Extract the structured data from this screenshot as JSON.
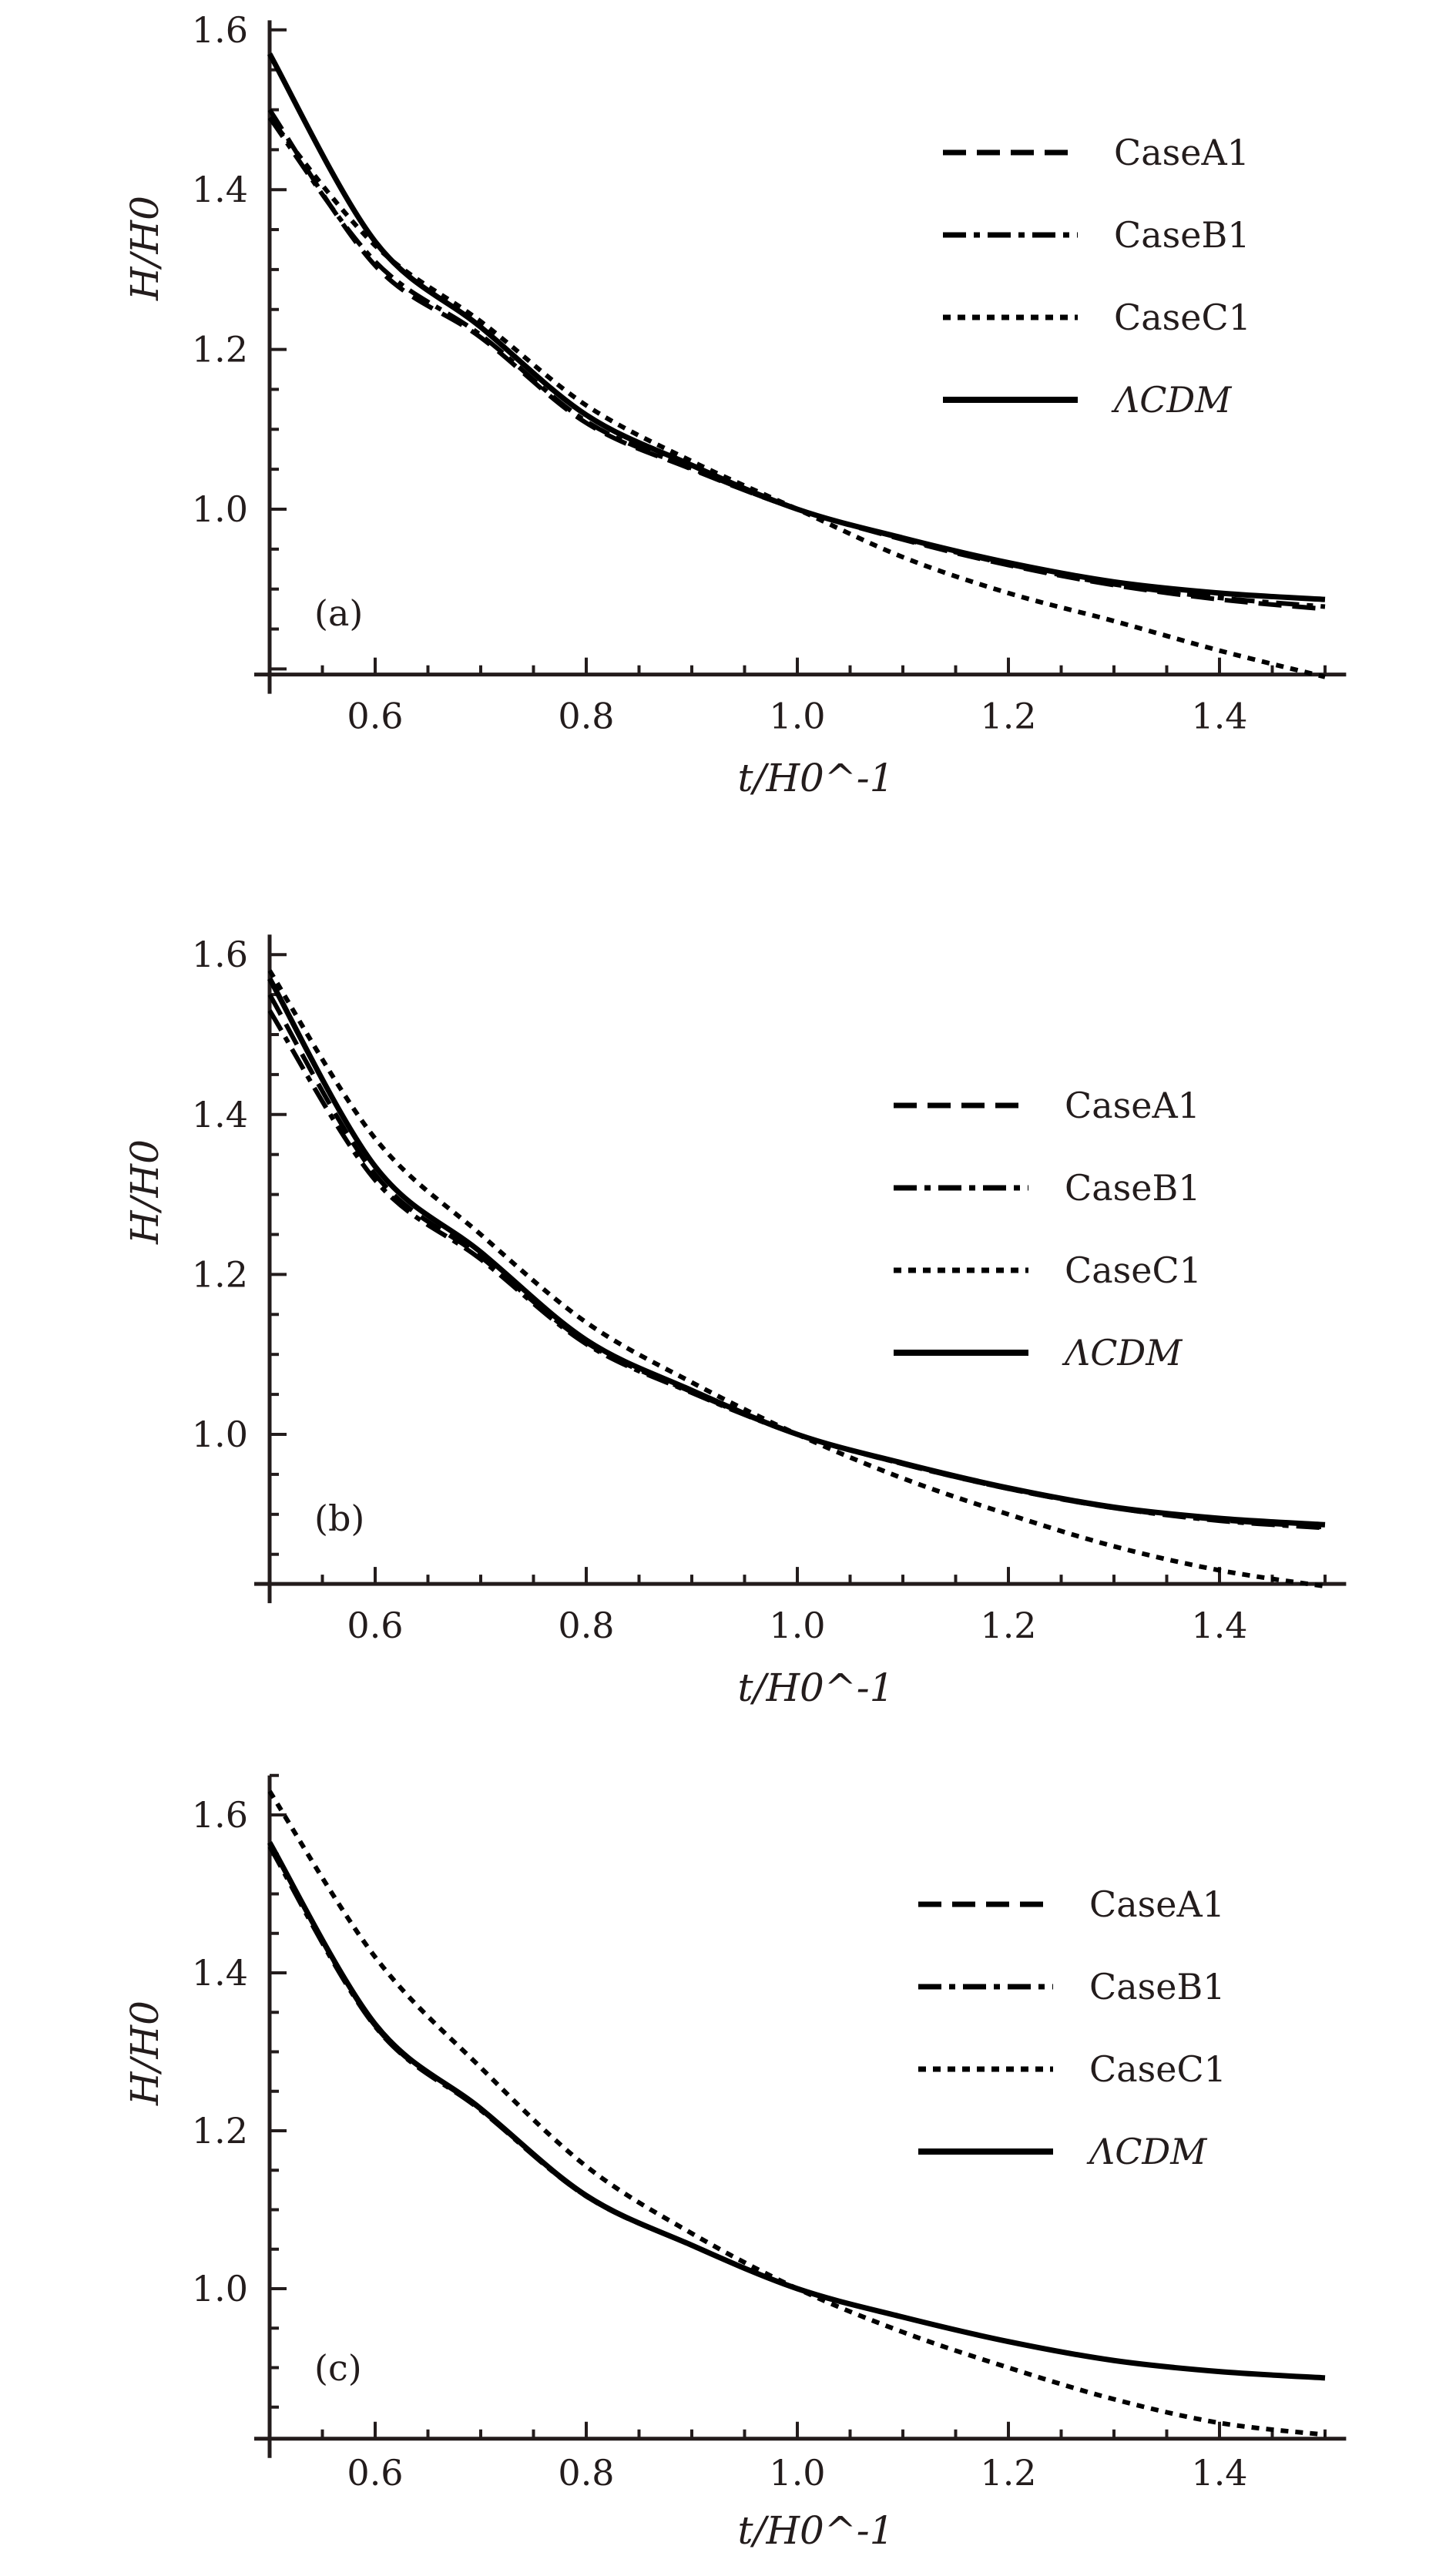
{
  "chart_data": [
    {
      "type": "line",
      "panel_label": "(a)",
      "xlabel": "t/H0^-1",
      "ylabel": "H/H0",
      "xlim": [
        0.5,
        1.52
      ],
      "ylim": [
        0.793,
        1.612
      ],
      "xticks": [
        "0.6",
        "0.8",
        "1.0",
        "1.2",
        "1.4"
      ],
      "yticks": [
        "1.0",
        "1.2",
        "1.4",
        "1.6"
      ],
      "legend_position": "top-right",
      "x": [
        0.5,
        0.6,
        0.7,
        0.8,
        0.9,
        1.0,
        1.1,
        1.2,
        1.3,
        1.4,
        1.5
      ],
      "series": [
        {
          "name": "CaseA1",
          "style": "dashed",
          "values": [
            1.5,
            1.305,
            1.215,
            1.108,
            1.05,
            1.0,
            0.962,
            0.93,
            0.905,
            0.887,
            0.875
          ]
        },
        {
          "name": "CaseB1",
          "style": "dashdot",
          "values": [
            1.49,
            1.31,
            1.218,
            1.11,
            1.051,
            1.0,
            0.963,
            0.931,
            0.906,
            0.889,
            0.878
          ]
        },
        {
          "name": "CaseC1",
          "style": "dotted",
          "values": [
            1.49,
            1.33,
            1.235,
            1.13,
            1.06,
            1.0,
            0.94,
            0.895,
            0.86,
            0.823,
            0.79
          ]
        },
        {
          "name": "ΛCDM",
          "style": "solid",
          "values": [
            1.57,
            1.335,
            1.228,
            1.118,
            1.055,
            1.0,
            0.964,
            0.933,
            0.909,
            0.895,
            0.887
          ]
        }
      ]
    },
    {
      "type": "line",
      "panel_label": "(b)",
      "xlabel": "t/H0^-1",
      "ylabel": "H/H0",
      "xlim": [
        0.5,
        1.52
      ],
      "ylim": [
        0.813,
        1.625
      ],
      "xticks": [
        "0.6",
        "0.8",
        "1.0",
        "1.2",
        "1.4"
      ],
      "yticks": [
        "1.0",
        "1.2",
        "1.4",
        "1.6"
      ],
      "legend_position": "top-right",
      "x": [
        0.5,
        0.6,
        0.7,
        0.8,
        0.9,
        1.0,
        1.1,
        1.2,
        1.3,
        1.4,
        1.5
      ],
      "series": [
        {
          "name": "CaseA1",
          "style": "dashed",
          "values": [
            1.55,
            1.325,
            1.222,
            1.115,
            1.053,
            1.0,
            0.963,
            0.932,
            0.908,
            0.893,
            0.884
          ]
        },
        {
          "name": "CaseB1",
          "style": "dashdot",
          "values": [
            1.53,
            1.318,
            1.219,
            1.113,
            1.052,
            1.0,
            0.963,
            0.932,
            0.908,
            0.892,
            0.883
          ]
        },
        {
          "name": "CaseC1",
          "style": "dotted",
          "values": [
            1.58,
            1.37,
            1.25,
            1.14,
            1.065,
            1.0,
            0.945,
            0.9,
            0.86,
            0.83,
            0.81
          ]
        },
        {
          "name": "ΛCDM",
          "style": "solid",
          "values": [
            1.57,
            1.335,
            1.228,
            1.118,
            1.055,
            1.0,
            0.964,
            0.933,
            0.909,
            0.895,
            0.887
          ]
        }
      ]
    },
    {
      "type": "line",
      "panel_label": "(c)",
      "xlabel": "t/H0^-1",
      "ylabel": "H/H0",
      "xlim": [
        0.5,
        1.52
      ],
      "ylim": [
        0.81,
        1.65
      ],
      "xticks": [
        "0.6",
        "0.8",
        "1.0",
        "1.2",
        "1.4"
      ],
      "yticks": [
        "1.0",
        "1.2",
        "1.4",
        "1.6"
      ],
      "legend_position": "top-right",
      "x": [
        0.5,
        0.6,
        0.7,
        0.8,
        0.9,
        1.0,
        1.1,
        1.2,
        1.3,
        1.4,
        1.5
      ],
      "series": [
        {
          "name": "CaseA1",
          "style": "dashed",
          "values": [
            1.565,
            1.333,
            1.227,
            1.117,
            1.055,
            1.0,
            0.964,
            0.933,
            0.909,
            0.895,
            0.887
          ]
        },
        {
          "name": "CaseB1",
          "style": "dashdot",
          "values": [
            1.56,
            1.332,
            1.226,
            1.117,
            1.055,
            1.0,
            0.964,
            0.933,
            0.909,
            0.895,
            0.887
          ]
        },
        {
          "name": "CaseC1",
          "style": "dotted",
          "values": [
            1.63,
            1.42,
            1.28,
            1.155,
            1.07,
            1.0,
            0.945,
            0.9,
            0.86,
            0.83,
            0.815
          ]
        },
        {
          "name": "ΛCDM",
          "style": "solid",
          "values": [
            1.565,
            1.335,
            1.228,
            1.118,
            1.055,
            1.0,
            0.964,
            0.933,
            0.909,
            0.895,
            0.887
          ]
        }
      ]
    }
  ]
}
